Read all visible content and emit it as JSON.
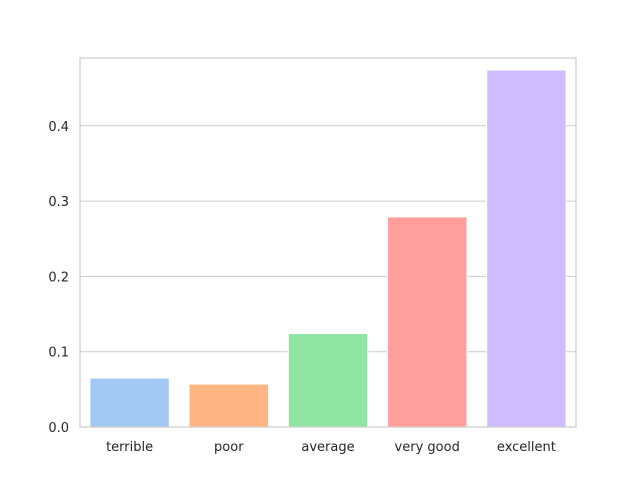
{
  "chart_data": {
    "type": "bar",
    "title": "",
    "xlabel": "",
    "ylabel": "",
    "categories": [
      "terrible",
      "poor",
      "average",
      "very good",
      "excellent"
    ],
    "values": [
      0.065,
      0.057,
      0.124,
      0.279,
      0.474
    ],
    "colors": [
      "#a1c9f4",
      "#ffb482",
      "#8de5a1",
      "#ff9f9b",
      "#d0bbff"
    ],
    "ylim": [
      0,
      0.49
    ],
    "yticks": [
      0.0,
      0.1,
      0.2,
      0.3,
      0.4
    ],
    "ytick_labels": [
      "0.0",
      "0.1",
      "0.2",
      "0.3",
      "0.4"
    ],
    "grid": "horizontal",
    "legend": "none"
  }
}
